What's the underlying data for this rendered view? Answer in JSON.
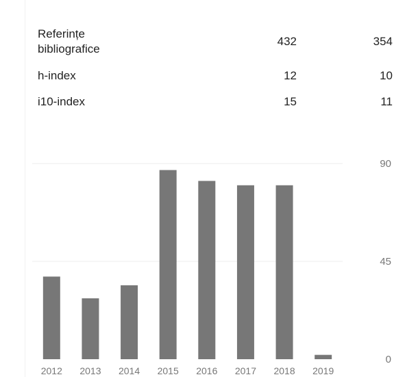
{
  "stats": [
    {
      "metric": "Referințe bibliografice",
      "col1": "432",
      "col2": "354"
    },
    {
      "metric": "h-index",
      "col1": "12",
      "col2": "10"
    },
    {
      "metric": "i10-index",
      "col1": "15",
      "col2": "11"
    }
  ],
  "chart_data": {
    "type": "bar",
    "categories": [
      "2012",
      "2013",
      "2014",
      "2015",
      "2016",
      "2017",
      "2018",
      "2019"
    ],
    "values": [
      38,
      28,
      34,
      87,
      82,
      80,
      80,
      2
    ],
    "ylim": [
      0,
      90
    ],
    "yticks": [
      "0",
      "45",
      "90"
    ],
    "grid": true,
    "colors": {
      "bar": "#777777",
      "grid": "#ececec"
    }
  }
}
